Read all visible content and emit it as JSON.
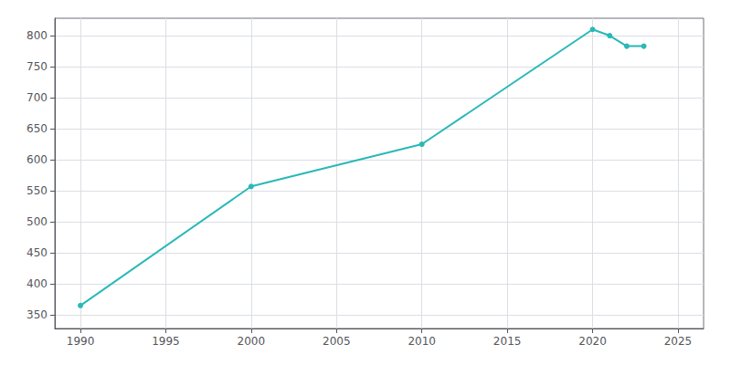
{
  "chart_data": {
    "type": "line",
    "x": [
      1990,
      2000,
      2010,
      2020,
      2021,
      2022,
      2023
    ],
    "values": [
      365,
      557,
      625,
      810,
      800,
      783,
      783
    ],
    "color": "#2ab8b8",
    "marker": "circle",
    "xlim": [
      1988.5,
      2026.5
    ],
    "xticks": [
      1990,
      1995,
      2000,
      2005,
      2010,
      2015,
      2020,
      2025
    ],
    "ylim": [
      328,
      828
    ],
    "yticks": [
      350,
      400,
      450,
      500,
      550,
      600,
      650,
      700,
      750,
      800
    ],
    "grid": true
  }
}
